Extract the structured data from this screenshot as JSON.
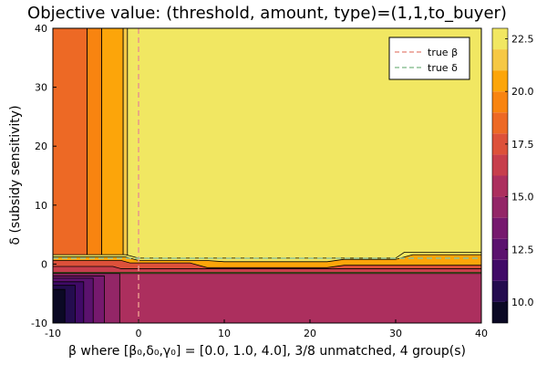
{
  "chart_data": {
    "type": "heatmap",
    "subtype": "filled-contour",
    "title": "Objective value: (threshold, amount, type)=(1,1,to_buyer)",
    "xlabel": "β where [β₀,δ₀,γ₀] = [0.0, 1.0, 4.0], 3/8 unmatched, 4 group(s)",
    "ylabel": "δ (subsidy sensitivity)",
    "xlim": [
      -10,
      40
    ],
    "ylim": [
      -10,
      40
    ],
    "xticks": [
      {
        "value": -10,
        "label": "-10"
      },
      {
        "value": 0,
        "label": "0"
      },
      {
        "value": 10,
        "label": "10"
      },
      {
        "value": 20,
        "label": "20"
      },
      {
        "value": 30,
        "label": "30"
      },
      {
        "value": 40,
        "label": "40"
      }
    ],
    "yticks": [
      {
        "value": -10,
        "label": "-10"
      },
      {
        "value": 0,
        "label": "0"
      },
      {
        "value": 10,
        "label": "10"
      },
      {
        "value": 20,
        "label": "20"
      },
      {
        "value": 30,
        "label": "30"
      },
      {
        "value": 40,
        "label": "40"
      }
    ],
    "colorbar": {
      "range": [
        9,
        23
      ],
      "levels": [
        9,
        10,
        11,
        12,
        13,
        14,
        15,
        16,
        17,
        18,
        19,
        20,
        21,
        22,
        23
      ],
      "colors": [
        "#000004",
        "#0b0924",
        "#240c4f",
        "#400a67",
        "#5b126e",
        "#76196e",
        "#932667",
        "#ac2f5e",
        "#c73e4c",
        "#dd513a",
        "#ed6925",
        "#f88410",
        "#fca50a",
        "#f6c845",
        "#f1e762",
        "#fcffa4"
      ],
      "ticks": [
        {
          "value": 10.0,
          "label": "10.0"
        },
        {
          "value": 12.5,
          "label": "12.5"
        },
        {
          "value": 15.0,
          "label": "15.0"
        },
        {
          "value": 17.5,
          "label": "17.5"
        },
        {
          "value": 20.0,
          "label": "20.0"
        },
        {
          "value": 22.5,
          "label": "22.5"
        }
      ]
    },
    "regions": [
      {
        "name": "upper-right plateau",
        "value": 22.9
      },
      {
        "name": "left column",
        "value": 18.2
      },
      {
        "name": "orange column",
        "value": 20.6
      },
      {
        "name": "transition band",
        "value": 20.5
      },
      {
        "name": "lower band",
        "value": 15.5
      },
      {
        "name": "bottom-left corner",
        "value": 9.3
      }
    ],
    "reference_lines": [
      {
        "label": "true β",
        "orientation": "vertical",
        "value": 0,
        "color": "#e8958b",
        "style": "dashed"
      },
      {
        "label": "true δ",
        "orientation": "horizontal",
        "value": 1,
        "color": "#8fc297",
        "style": "dashed"
      }
    ],
    "legend_position": "top-right"
  }
}
